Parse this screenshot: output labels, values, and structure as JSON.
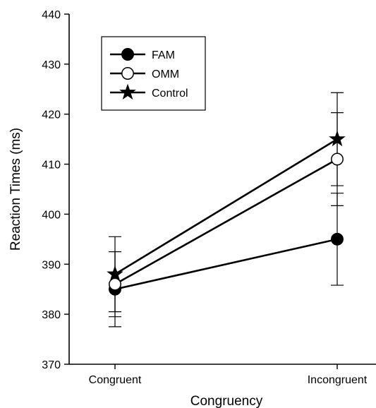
{
  "chart_data": {
    "type": "line",
    "title": "",
    "xlabel": "Congruency",
    "ylabel": "Reaction Times (ms)",
    "categories": [
      "Congruent",
      "Incongruent"
    ],
    "ylim": [
      370,
      440
    ],
    "yticks": [
      370,
      380,
      390,
      400,
      410,
      420,
      430,
      440
    ],
    "grid": false,
    "legend_position": "top-left",
    "series": [
      {
        "name": "FAM",
        "marker": "filled-circle",
        "values": [
          385,
          395
        ],
        "error": [
          7.5,
          9.2
        ]
      },
      {
        "name": "OMM",
        "marker": "open-circle",
        "values": [
          386,
          411
        ],
        "error": [
          6.5,
          9.3
        ]
      },
      {
        "name": "Control",
        "marker": "star",
        "values": [
          388,
          415
        ],
        "error": [
          7.5,
          9.3
        ]
      }
    ]
  }
}
